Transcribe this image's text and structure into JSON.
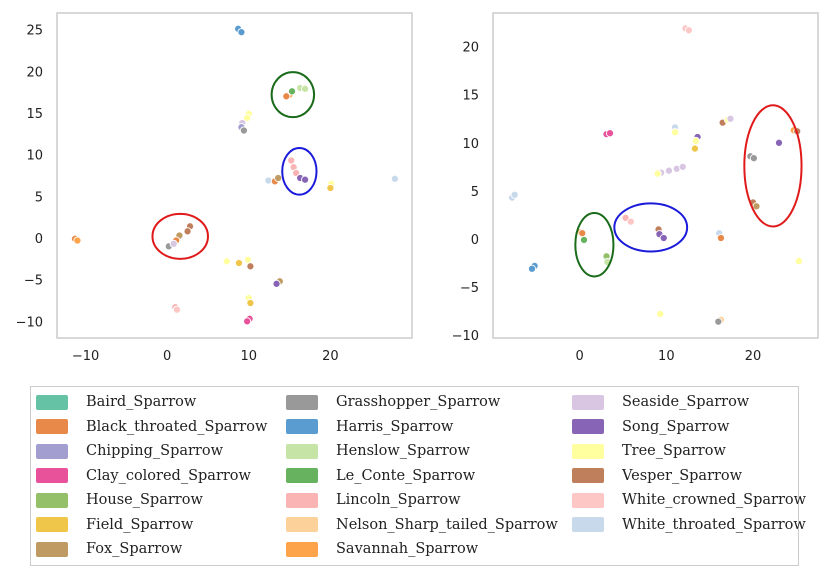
{
  "chart_data": [
    {
      "type": "scatter",
      "title": "",
      "xlabel": "",
      "ylabel": "",
      "xlim": [
        -13.5,
        30
      ],
      "ylim": [
        -12,
        27
      ],
      "xticks": [
        -10,
        0,
        10,
        20
      ],
      "yticks": [
        -10,
        -5,
        0,
        5,
        10,
        15,
        20,
        25
      ],
      "grid": false,
      "points": [
        {
          "x": 8.7,
          "y": 25.1,
          "label": "Harris_Sparrow"
        },
        {
          "x": 9.1,
          "y": 24.7,
          "label": "Harris_Sparrow"
        },
        {
          "x": 15.0,
          "y": 17.2,
          "label": "Savannah_Sparrow"
        },
        {
          "x": 14.6,
          "y": 17.0,
          "label": "Black_throated_Sparrow"
        },
        {
          "x": 15.3,
          "y": 17.6,
          "label": "Le_Conte_Sparrow"
        },
        {
          "x": 16.3,
          "y": 18.0,
          "label": "Henslow_Sparrow"
        },
        {
          "x": 16.9,
          "y": 17.9,
          "label": "Henslow_Sparrow"
        },
        {
          "x": 10.0,
          "y": 14.9,
          "label": "Tree_Sparrow"
        },
        {
          "x": 9.8,
          "y": 14.4,
          "label": "Tree_Sparrow"
        },
        {
          "x": 9.2,
          "y": 13.8,
          "label": "Seaside_Sparrow"
        },
        {
          "x": 9.1,
          "y": 13.3,
          "label": "Chipping_Sparrow"
        },
        {
          "x": 9.4,
          "y": 12.9,
          "label": "Grasshopper_Sparrow"
        },
        {
          "x": 15.2,
          "y": 9.3,
          "label": "Lincoln_Sparrow"
        },
        {
          "x": 15.5,
          "y": 8.5,
          "label": "Lincoln_Sparrow"
        },
        {
          "x": 15.8,
          "y": 7.8,
          "label": "Lincoln_Sparrow"
        },
        {
          "x": 16.3,
          "y": 7.2,
          "label": "Song_Sparrow"
        },
        {
          "x": 16.9,
          "y": 7.0,
          "label": "Song_Sparrow"
        },
        {
          "x": 12.4,
          "y": 6.9,
          "label": "White_throated_Sparrow"
        },
        {
          "x": 13.2,
          "y": 6.8,
          "label": "Black_throated_Sparrow"
        },
        {
          "x": 13.6,
          "y": 7.2,
          "label": "Fox_Sparrow"
        },
        {
          "x": 20.1,
          "y": 6.5,
          "label": "Tree_Sparrow"
        },
        {
          "x": 20.0,
          "y": 6.0,
          "label": "Field_Sparrow"
        },
        {
          "x": 27.9,
          "y": 7.1,
          "label": "White_throated_Sparrow"
        },
        {
          "x": -11.3,
          "y": -0.1,
          "label": "Black_throated_Sparrow"
        },
        {
          "x": -11.0,
          "y": -0.3,
          "label": "Savannah_Sparrow"
        },
        {
          "x": 2.8,
          "y": 1.4,
          "label": "Vesper_Sparrow"
        },
        {
          "x": 2.5,
          "y": 0.8,
          "label": "Vesper_Sparrow"
        },
        {
          "x": 1.5,
          "y": 0.3,
          "label": "Fox_Sparrow"
        },
        {
          "x": 1.1,
          "y": -0.3,
          "label": "Black_throated_Sparrow"
        },
        {
          "x": 0.2,
          "y": -1.0,
          "label": "Grasshopper_Sparrow"
        },
        {
          "x": 0.8,
          "y": -0.7,
          "label": "Seaside_Sparrow"
        },
        {
          "x": 7.3,
          "y": -2.8,
          "label": "Tree_Sparrow"
        },
        {
          "x": 8.8,
          "y": -3.0,
          "label": "Field_Sparrow"
        },
        {
          "x": 9.9,
          "y": -2.6,
          "label": "Tree_Sparrow"
        },
        {
          "x": 10.2,
          "y": -3.4,
          "label": "Vesper_Sparrow"
        },
        {
          "x": 13.8,
          "y": -5.2,
          "label": "Fox_Sparrow"
        },
        {
          "x": 13.4,
          "y": -5.5,
          "label": "Song_Sparrow"
        },
        {
          "x": 10.0,
          "y": -7.2,
          "label": "Tree_Sparrow"
        },
        {
          "x": 10.2,
          "y": -7.8,
          "label": "Field_Sparrow"
        },
        {
          "x": 1.0,
          "y": -8.3,
          "label": "Lincoln_Sparrow"
        },
        {
          "x": 1.2,
          "y": -8.6,
          "label": "White_crowned_Sparrow"
        },
        {
          "x": 10.1,
          "y": -9.7,
          "label": "Clay_colored_Sparrow"
        },
        {
          "x": 9.8,
          "y": -10.0,
          "label": "Clay_colored_Sparrow"
        }
      ],
      "ellipses": [
        {
          "cx": 15.4,
          "cy": 17.2,
          "rx": 2.6,
          "ry": 2.7,
          "color": "#1a6b1a"
        },
        {
          "cx": 16.2,
          "cy": 8.0,
          "rx": 2.1,
          "ry": 2.8,
          "color": "#1a1adb"
        },
        {
          "cx": 1.6,
          "cy": 0.2,
          "rx": 3.4,
          "ry": 2.7,
          "color": "#e01a1a"
        }
      ]
    },
    {
      "type": "scatter",
      "title": "",
      "xlabel": "",
      "ylabel": "",
      "xlim": [
        -10,
        27.5
      ],
      "ylim": [
        -10.3,
        23.5
      ],
      "xticks": [
        0,
        10,
        20
      ],
      "yticks": [
        -10,
        -5,
        0,
        5,
        10,
        15,
        20
      ],
      "grid": false,
      "points": [
        {
          "x": 12.2,
          "y": 21.9,
          "label": "White_crowned_Sparrow"
        },
        {
          "x": 12.6,
          "y": 21.7,
          "label": "White_crowned_Sparrow"
        },
        {
          "x": 16.5,
          "y": 12.1,
          "label": "Vesper_Sparrow"
        },
        {
          "x": 17.1,
          "y": 12.4,
          "label": "Tree_Sparrow"
        },
        {
          "x": 17.4,
          "y": 12.5,
          "label": "Seaside_Sparrow"
        },
        {
          "x": 11.0,
          "y": 11.6,
          "label": "White_throated_Sparrow"
        },
        {
          "x": 11.0,
          "y": 11.1,
          "label": "Tree_Sparrow"
        },
        {
          "x": 3.1,
          "y": 10.9,
          "label": "Clay_colored_Sparrow"
        },
        {
          "x": 3.5,
          "y": 11.0,
          "label": "Clay_colored_Sparrow"
        },
        {
          "x": 13.6,
          "y": 10.6,
          "label": "Song_Sparrow"
        },
        {
          "x": 13.4,
          "y": 10.2,
          "label": "Tree_Sparrow"
        },
        {
          "x": 13.3,
          "y": 9.4,
          "label": "Field_Sparrow"
        },
        {
          "x": 24.7,
          "y": 11.3,
          "label": "Savannah_Sparrow"
        },
        {
          "x": 25.1,
          "y": 11.2,
          "label": "Vesper_Sparrow"
        },
        {
          "x": 23.0,
          "y": 10.0,
          "label": "Song_Sparrow"
        },
        {
          "x": 19.7,
          "y": 8.6,
          "label": "Grasshopper_Sparrow"
        },
        {
          "x": 20.1,
          "y": 8.4,
          "label": "Grasshopper_Sparrow"
        },
        {
          "x": 20.0,
          "y": 3.8,
          "label": "Vesper_Sparrow"
        },
        {
          "x": 20.4,
          "y": 3.4,
          "label": "Fox_Sparrow"
        },
        {
          "x": 9.4,
          "y": 6.9,
          "label": "Seaside_Sparrow"
        },
        {
          "x": 10.3,
          "y": 7.1,
          "label": "Seaside_Sparrow"
        },
        {
          "x": 11.2,
          "y": 7.3,
          "label": "Seaside_Sparrow"
        },
        {
          "x": 11.9,
          "y": 7.5,
          "label": "Seaside_Sparrow"
        },
        {
          "x": 9.0,
          "y": 6.8,
          "label": "Tree_Sparrow"
        },
        {
          "x": -7.8,
          "y": 4.3,
          "label": "White_throated_Sparrow"
        },
        {
          "x": -7.5,
          "y": 4.6,
          "label": "White_throated_Sparrow"
        },
        {
          "x": 5.3,
          "y": 2.2,
          "label": "Lincoln_Sparrow"
        },
        {
          "x": 5.9,
          "y": 1.8,
          "label": "White_crowned_Sparrow"
        },
        {
          "x": 9.1,
          "y": 1.0,
          "label": "Vesper_Sparrow"
        },
        {
          "x": 9.2,
          "y": 0.5,
          "label": "Song_Sparrow"
        },
        {
          "x": 9.7,
          "y": 0.1,
          "label": "Song_Sparrow"
        },
        {
          "x": 16.1,
          "y": 0.6,
          "label": "White_throated_Sparrow"
        },
        {
          "x": 16.3,
          "y": 0.1,
          "label": "Black_throated_Sparrow"
        },
        {
          "x": 0.1,
          "y": 0.7,
          "label": "Savannah_Sparrow"
        },
        {
          "x": 0.3,
          "y": 0.6,
          "label": "Black_throated_Sparrow"
        },
        {
          "x": 0.5,
          "y": -0.1,
          "label": "Le_Conte_Sparrow"
        },
        {
          "x": 3.1,
          "y": -1.8,
          "label": "House_Sparrow"
        },
        {
          "x": 3.2,
          "y": -2.4,
          "label": "Henslow_Sparrow"
        },
        {
          "x": -5.2,
          "y": -2.8,
          "label": "Harris_Sparrow"
        },
        {
          "x": -5.5,
          "y": -3.1,
          "label": "Harris_Sparrow"
        },
        {
          "x": 25.3,
          "y": -2.3,
          "label": "Tree_Sparrow"
        },
        {
          "x": 9.3,
          "y": -7.8,
          "label": "Tree_Sparrow"
        },
        {
          "x": 16.3,
          "y": -8.4,
          "label": "Nelson_Sharp_tailed_Sparrow"
        },
        {
          "x": 16.0,
          "y": -8.6,
          "label": "Grasshopper_Sparrow"
        }
      ],
      "ellipses": [
        {
          "cx": 22.3,
          "cy": 7.6,
          "rx": 3.3,
          "ry": 6.3,
          "color": "#e01a1a"
        },
        {
          "cx": 8.2,
          "cy": 1.2,
          "rx": 4.2,
          "ry": 2.5,
          "color": "#1a1adb"
        },
        {
          "cx": 1.7,
          "cy": -0.6,
          "rx": 2.2,
          "ry": 3.3,
          "color": "#1a6b1a"
        }
      ]
    }
  ],
  "legend": {
    "placement": "below",
    "items": [
      {
        "label": "Baird_Sparrow",
        "color": "#66c2a5"
      },
      {
        "label": "Black_throated_Sparrow",
        "color": "#e8894a"
      },
      {
        "label": "Chipping_Sparrow",
        "color": "#a29fd0"
      },
      {
        "label": "Clay_colored_Sparrow",
        "color": "#e7529b"
      },
      {
        "label": "House_Sparrow",
        "color": "#95c06a"
      },
      {
        "label": "Field_Sparrow",
        "color": "#f0c64a"
      },
      {
        "label": "Fox_Sparrow",
        "color": "#bf9b63"
      },
      {
        "label": "Grasshopper_Sparrow",
        "color": "#999999"
      },
      {
        "label": "Harris_Sparrow",
        "color": "#5a9bd0"
      },
      {
        "label": "Henslow_Sparrow",
        "color": "#c7e4a7"
      },
      {
        "label": "Le_Conte_Sparrow",
        "color": "#66b25e"
      },
      {
        "label": "Lincoln_Sparrow",
        "color": "#f9b4b3"
      },
      {
        "label": "Nelson_Sharp_tailed_Sparrow",
        "color": "#fdd19a"
      },
      {
        "label": "Savannah_Sparrow",
        "color": "#fda44b"
      },
      {
        "label": "Seaside_Sparrow",
        "color": "#d8c6e2"
      },
      {
        "label": "Song_Sparrow",
        "color": "#8864b6"
      },
      {
        "label": "Tree_Sparrow",
        "color": "#ffff9f"
      },
      {
        "label": "Vesper_Sparrow",
        "color": "#c07f5c"
      },
      {
        "label": "White_crowned_Sparrow",
        "color": "#fcc7c5"
      },
      {
        "label": "White_throated_Sparrow",
        "color": "#c9d9ec"
      }
    ]
  },
  "style": {
    "frame_color": "#cccccc",
    "point_edge_color": "#ffffff"
  }
}
